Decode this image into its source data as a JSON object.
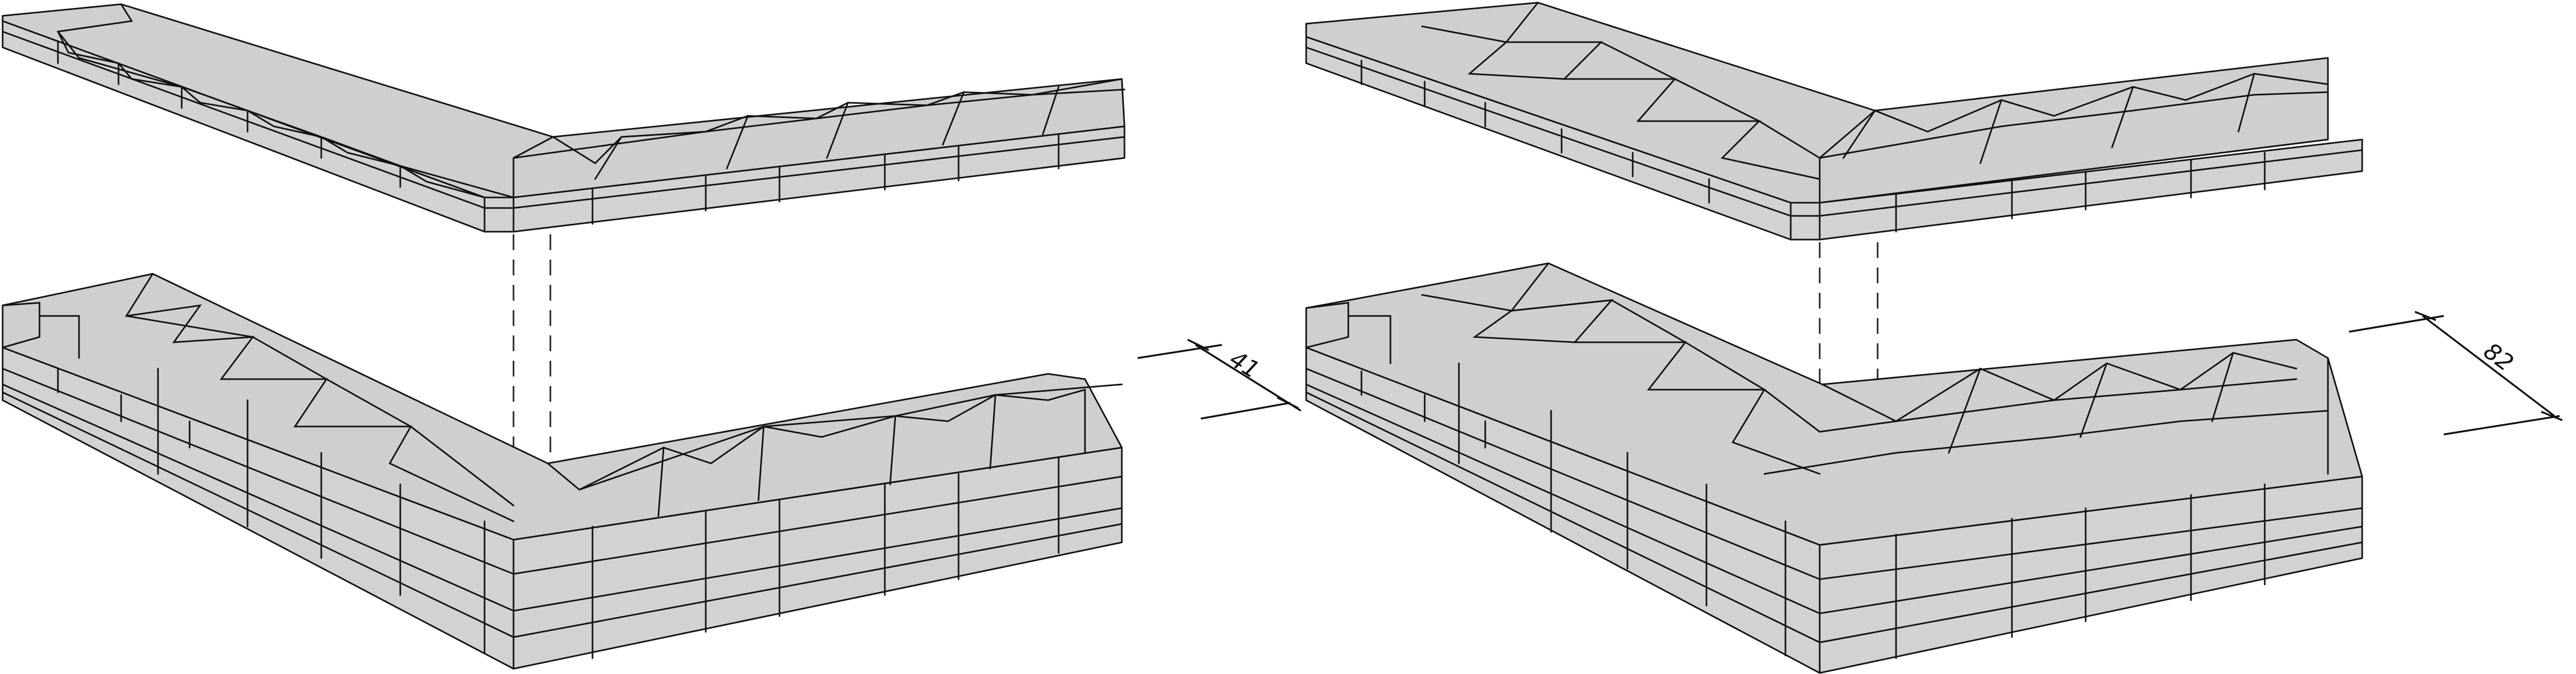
{
  "figure": {
    "panels": [
      {
        "name": "left-panel",
        "dimension_label": "41"
      },
      {
        "name": "right-panel",
        "dimension_label": "82"
      }
    ],
    "colors": {
      "face": "#cfcfcf",
      "stroke": "#111111"
    }
  }
}
